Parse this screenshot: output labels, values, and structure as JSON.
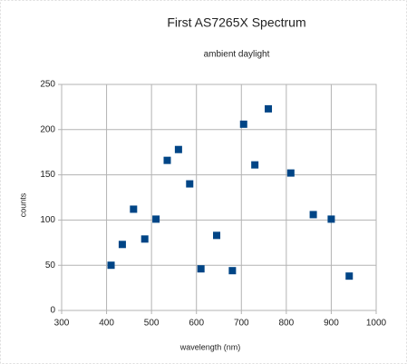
{
  "chart_data": {
    "type": "scatter",
    "title": "First AS7265X Spectrum",
    "subtitle": "ambient daylight",
    "x_label": "wavelength (nm)",
    "y_label": "counts",
    "series": [
      {
        "name": "counts",
        "color": "#004586",
        "x": [
          410,
          435,
          460,
          485,
          510,
          535,
          560,
          585,
          610,
          645,
          680,
          705,
          730,
          760,
          810,
          860,
          900,
          940
        ],
        "values": [
          50,
          73,
          112,
          79,
          101,
          166,
          178,
          140,
          46,
          83,
          44,
          206,
          161,
          223,
          152,
          106,
          101,
          38
        ]
      }
    ],
    "xlim": [
      300,
      1000
    ],
    "xticks": [
      300,
      400,
      500,
      600,
      700,
      800,
      900,
      1000
    ],
    "ylim": [
      0,
      250
    ],
    "yticks": [
      0,
      50,
      100,
      150,
      200,
      250
    ],
    "grid": true,
    "legend": false
  }
}
